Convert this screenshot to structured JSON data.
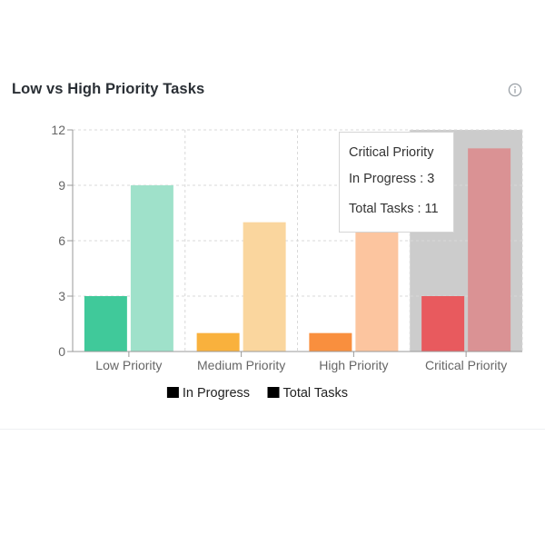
{
  "card": {
    "title": "Low vs High Priority Tasks",
    "info_icon": "info-circle-icon"
  },
  "chart_data": {
    "type": "bar",
    "title": "",
    "xlabel": "",
    "ylabel": "",
    "categories": [
      "Low Priority",
      "Medium Priority",
      "High Priority",
      "Critical Priority"
    ],
    "series": [
      {
        "name": "In Progress",
        "values": [
          3,
          1,
          1,
          3
        ],
        "colors": [
          "#40c99a",
          "#f9b13d",
          "#f98f3e",
          "#e85a5e"
        ]
      },
      {
        "name": "Total Tasks",
        "values": [
          9,
          7,
          7,
          11
        ],
        "colors": [
          "#9fe1ca",
          "#fad69e",
          "#fcc59f",
          "#da9294"
        ]
      }
    ],
    "ylim": [
      0,
      12
    ],
    "yticks": [
      0,
      3,
      6,
      9,
      12
    ],
    "grid": true,
    "legend": "bottom",
    "legend_swatch_color": "#000000",
    "highlighted_category": "Critical Priority",
    "highlight_color": "#cccccc"
  },
  "tooltip": {
    "title": "Critical Priority",
    "in_progress": "In Progress : 3",
    "total": "Total Tasks : 11"
  }
}
